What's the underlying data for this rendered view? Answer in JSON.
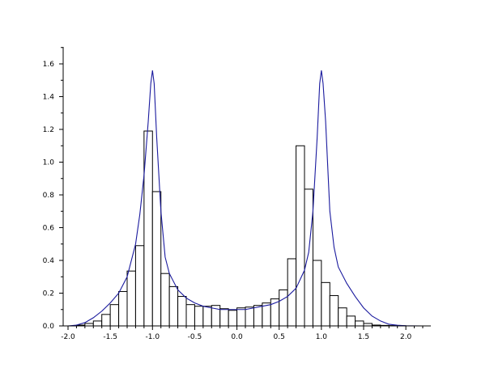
{
  "chart_data": {
    "type": "bar",
    "xlim": [
      -2.0,
      2.2
    ],
    "ylim": [
      0.0,
      1.6
    ],
    "x_ticks": [
      -2.0,
      -1.5,
      -1.0,
      -0.5,
      0.0,
      0.5,
      1.0,
      1.5,
      2.0
    ],
    "x_tick_labels": [
      "-2.0",
      "-1.5",
      "-1.0",
      "-0.5",
      "0.0",
      "0.5",
      "1.0",
      "1.5",
      "2.0"
    ],
    "y_ticks": [
      0.0,
      0.2,
      0.4,
      0.6,
      0.8,
      1.0,
      1.2,
      1.4,
      1.6
    ],
    "y_tick_labels": [
      "0.0",
      "0.2",
      "0.4",
      "0.6",
      "0.8",
      "1.0",
      "1.2",
      "1.4",
      "1.6"
    ],
    "grid": false,
    "histogram": {
      "bin_width": 0.1,
      "bin_starts": [
        -1.9,
        -1.8,
        -1.7,
        -1.6,
        -1.5,
        -1.4,
        -1.3,
        -1.2,
        -1.1,
        -1.0,
        -0.9,
        -0.8,
        -0.7,
        -0.6,
        -0.5,
        -0.4,
        -0.3,
        -0.2,
        -0.1,
        0.0,
        0.1,
        0.2,
        0.3,
        0.4,
        0.5,
        0.6,
        0.7,
        0.8,
        0.9,
        1.0,
        1.1,
        1.2,
        1.3,
        1.4,
        1.5,
        1.6,
        1.7,
        1.8,
        1.9
      ],
      "values": [
        0.005,
        0.015,
        0.03,
        0.07,
        0.13,
        0.21,
        0.335,
        0.49,
        1.19,
        0.82,
        0.32,
        0.24,
        0.18,
        0.13,
        0.12,
        0.12,
        0.125,
        0.105,
        0.095,
        0.11,
        0.115,
        0.125,
        0.14,
        0.165,
        0.22,
        0.41,
        1.1,
        0.835,
        0.4,
        0.265,
        0.185,
        0.11,
        0.06,
        0.03,
        0.015,
        0.005,
        0.003,
        0.002,
        0.001
      ]
    },
    "density_curve": {
      "x": [
        -2.0,
        -1.9,
        -1.8,
        -1.7,
        -1.6,
        -1.5,
        -1.4,
        -1.3,
        -1.2,
        -1.15,
        -1.1,
        -1.05,
        -1.02,
        -1.0,
        -0.98,
        -0.95,
        -0.9,
        -0.85,
        -0.8,
        -0.7,
        -0.6,
        -0.5,
        -0.4,
        -0.3,
        -0.2,
        -0.1,
        0.0,
        0.1,
        0.2,
        0.3,
        0.4,
        0.5,
        0.6,
        0.7,
        0.8,
        0.85,
        0.9,
        0.95,
        0.98,
        1.0,
        1.02,
        1.05,
        1.1,
        1.15,
        1.2,
        1.3,
        1.4,
        1.5,
        1.6,
        1.7,
        1.8,
        1.9,
        2.0,
        2.2
      ],
      "y": [
        0.0,
        0.005,
        0.02,
        0.05,
        0.09,
        0.14,
        0.2,
        0.3,
        0.5,
        0.68,
        0.92,
        1.25,
        1.48,
        1.56,
        1.48,
        1.15,
        0.7,
        0.42,
        0.32,
        0.22,
        0.17,
        0.14,
        0.12,
        0.11,
        0.1,
        0.1,
        0.1,
        0.1,
        0.11,
        0.12,
        0.13,
        0.15,
        0.18,
        0.23,
        0.34,
        0.45,
        0.7,
        1.15,
        1.48,
        1.56,
        1.48,
        1.25,
        0.7,
        0.48,
        0.36,
        0.26,
        0.18,
        0.11,
        0.06,
        0.03,
        0.01,
        0.004,
        0.001,
        0.0
      ]
    }
  }
}
